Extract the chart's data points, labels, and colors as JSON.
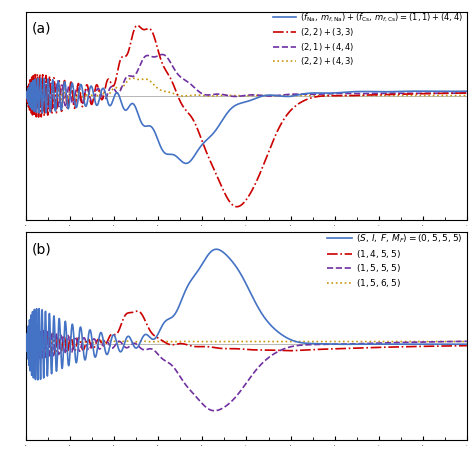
{
  "color_blue": "#4472C4",
  "color_red": "#CC0000",
  "color_purple": "#7030A0",
  "color_orange": "#C8960A",
  "background": "#ffffff",
  "label_a": "(a)",
  "label_b": "(b)"
}
